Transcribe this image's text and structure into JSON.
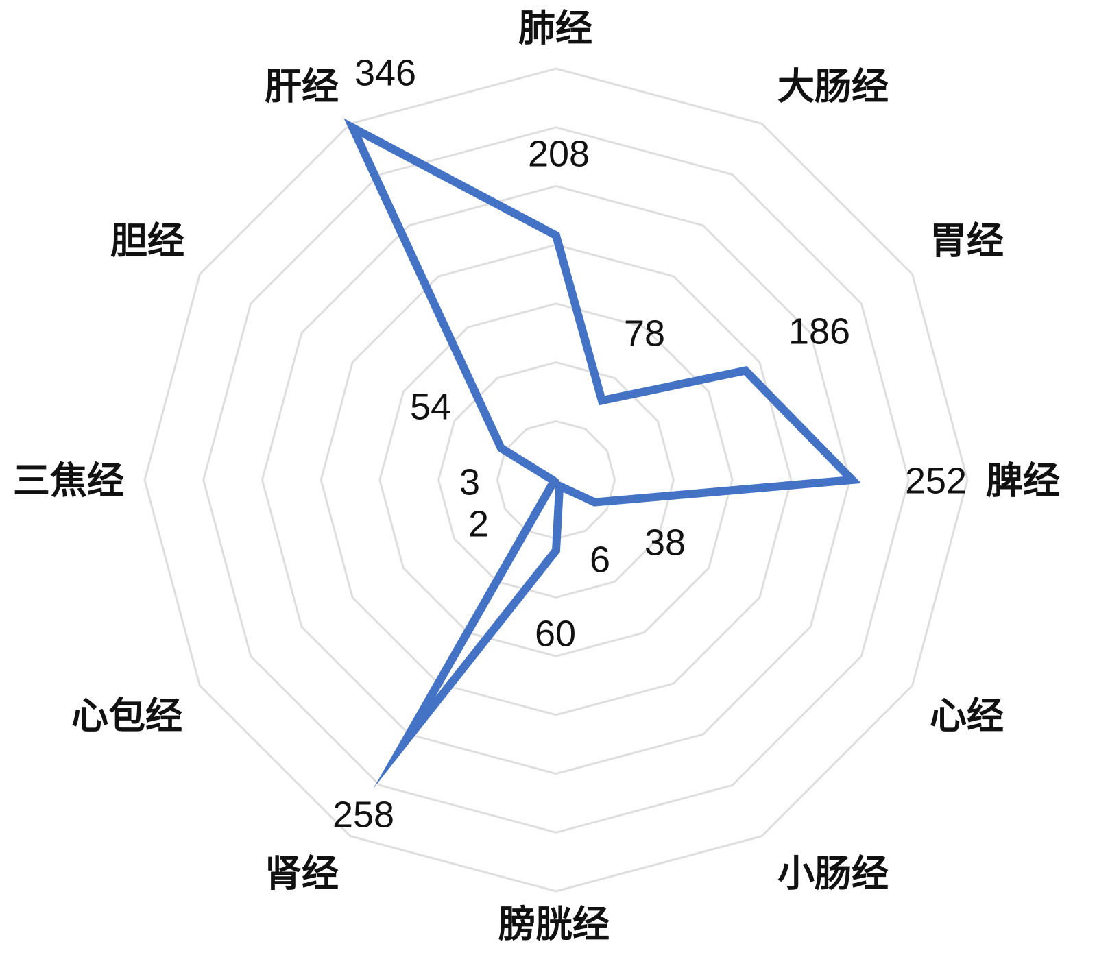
{
  "chart_data": {
    "type": "radar",
    "title": "",
    "categories": [
      "肺经",
      "大肠经",
      "胃经",
      "脾经",
      "心经",
      "小肠经",
      "膀胱经",
      "肾经",
      "心包经",
      "三焦经",
      "胆经",
      "肝经"
    ],
    "series": [
      {
        "values": [
          208,
          78,
          186,
          252,
          38,
          6,
          60,
          258,
          2,
          3,
          54,
          346
        ]
      }
    ],
    "value_labels": [
      "208",
      "78",
      "186",
      "252",
      "38",
      "6",
      "60",
      "258",
      "2",
      "3",
      "54",
      "346"
    ],
    "rlim": [
      0,
      350
    ],
    "ring_step": 50,
    "grid": true,
    "legend": "none",
    "colors": {
      "series": "#4472C4",
      "grid": "#dedede"
    }
  }
}
